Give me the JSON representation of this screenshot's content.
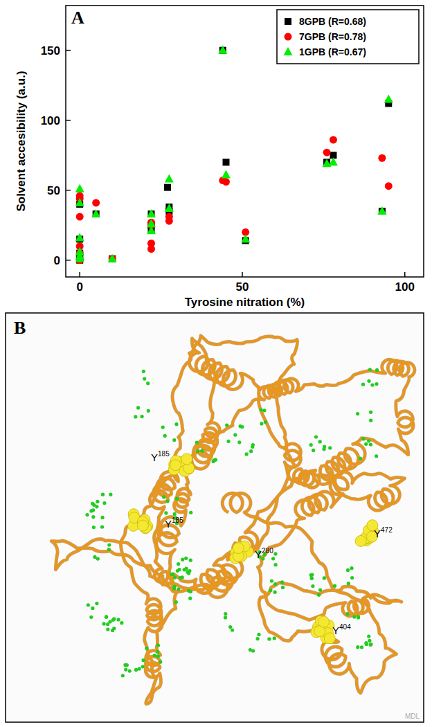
{
  "chart_data": {
    "type": "scatter",
    "title": "A",
    "x_label": "Tyrosine nitration (%)",
    "y_label": "Solvent accesibility (a.u.)",
    "xlim": [
      -4.3,
      105.8
    ],
    "xticks": [
      0,
      50,
      100
    ],
    "ylim": [
      -12,
      182
    ],
    "yticks": [
      0,
      50,
      100,
      150
    ],
    "legend": "top-right",
    "grid": false,
    "series": [
      {
        "name": "8GPB (R=0.68)",
        "color": "#000000",
        "marker": "square",
        "x": [
          0,
          0,
          0,
          0,
          0,
          5,
          10,
          22,
          22,
          22,
          27,
          27.5,
          27.5,
          44,
          45,
          51,
          76,
          78,
          93,
          95
        ],
        "values": [
          0,
          2,
          5,
          15,
          40,
          33,
          1,
          33,
          22,
          25,
          52,
          38,
          35,
          150,
          70,
          14,
          70,
          75,
          35,
          112
        ]
      },
      {
        "name": "7GPB (R=0.78)",
        "color": "#ff0000",
        "marker": "circle",
        "x": [
          0,
          0,
          0,
          0,
          0,
          0,
          5,
          10,
          22,
          22,
          22,
          22,
          27.5,
          27.5,
          44,
          45,
          51,
          76,
          78,
          93,
          95
        ],
        "values": [
          46,
          44,
          31,
          10,
          5,
          0,
          41,
          1,
          27,
          25,
          12,
          8,
          31,
          28,
          57,
          56,
          20,
          77,
          86,
          73,
          53
        ]
      },
      {
        "name": "1GPB (R=0.67)",
        "color": "#00ee00",
        "marker": "triangle",
        "x": [
          0,
          0,
          0,
          0,
          0,
          0,
          5,
          10,
          22,
          22,
          22,
          27.5,
          27.5,
          44,
          45,
          51,
          76,
          78,
          93,
          95
        ],
        "values": [
          51,
          41,
          16,
          6,
          3,
          1,
          33,
          1,
          33,
          26,
          21,
          58,
          37,
          150,
          61,
          15,
          69,
          70,
          35,
          115
        ]
      }
    ]
  },
  "structure_panel": {
    "title": "B",
    "watermark": "MDL",
    "labels": [
      {
        "residue": "Y",
        "number": "185"
      },
      {
        "residue": "Y",
        "number": "185"
      },
      {
        "residue": "Y",
        "number": "280"
      },
      {
        "residue": "Y",
        "number": "472"
      },
      {
        "residue": "Y",
        "number": "404"
      }
    ]
  }
}
